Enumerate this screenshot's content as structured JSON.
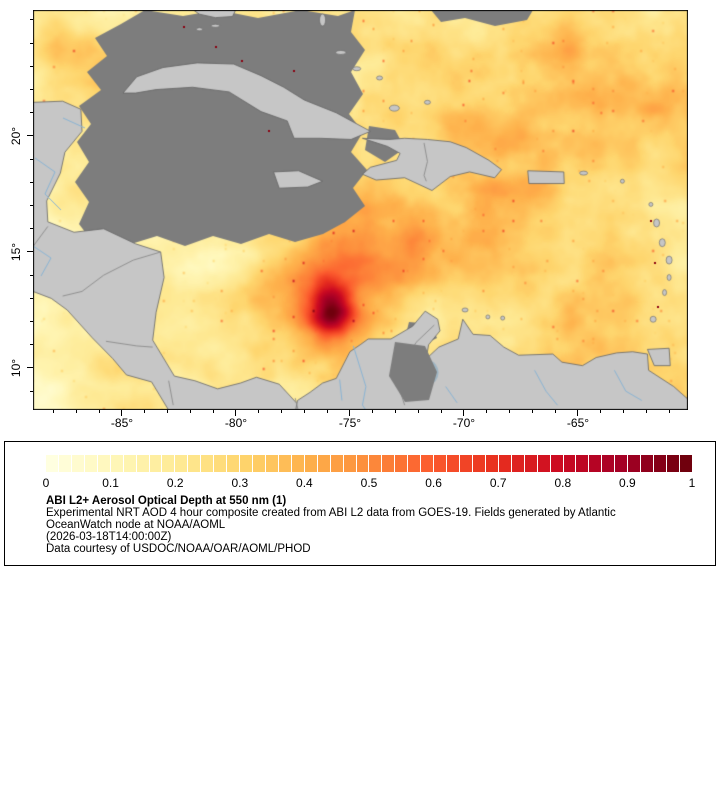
{
  "map": {
    "x_axis": {
      "ticks": [
        {
          "label": "-85°",
          "lon": -85
        },
        {
          "label": "-80°",
          "lon": -80
        },
        {
          "label": "-75°",
          "lon": -75
        },
        {
          "label": "-70°",
          "lon": -70
        },
        {
          "label": "-65°",
          "lon": -65
        }
      ]
    },
    "y_axis": {
      "ticks": [
        {
          "label": "20°",
          "lat": 20
        },
        {
          "label": "15°",
          "lat": 15
        },
        {
          "label": "10°",
          "lat": 10
        }
      ]
    },
    "extent": {
      "lon_min": -88.9,
      "lon_max": -60.2,
      "lat_min": 8.2,
      "lat_max": 25.4
    },
    "colors": {
      "land": "#c6c6c6",
      "no_data_cloud": "#7d7d7d",
      "coastline": "#636363",
      "country_border": "#8a8a8a",
      "river": "#8ab4d4",
      "lake": "#9fb6c4",
      "frame": "#000000"
    },
    "palette": [
      "#ffffe0",
      "#fff7b8",
      "#feea95",
      "#fed66e",
      "#feb24c",
      "#fd8d3c",
      "#fc5b2e",
      "#e8301f",
      "#cc0a22",
      "#a50026",
      "#70000d"
    ]
  },
  "legend": {
    "colorbar": {
      "segments": 50,
      "tick_labels": [
        "0",
        "0.1",
        "0.2",
        "0.3",
        "0.4",
        "0.5",
        "0.6",
        "0.7",
        "0.8",
        "0.9",
        "1"
      ]
    },
    "title": "ABI L2+ Aerosol Optical Depth at 550 nm (1)",
    "description_line1": "Experimental NRT AOD 4 hour composite created from ABI L2 data from GOES-19. Fields generated by Atlantic",
    "description_line2": "OceanWatch node at NOAA/AOML",
    "timestamp": "(2026-03-18T14:00:00Z)",
    "credit": "Data courtesy of USDOC/NOAA/OAR/AOML/PHOD"
  }
}
